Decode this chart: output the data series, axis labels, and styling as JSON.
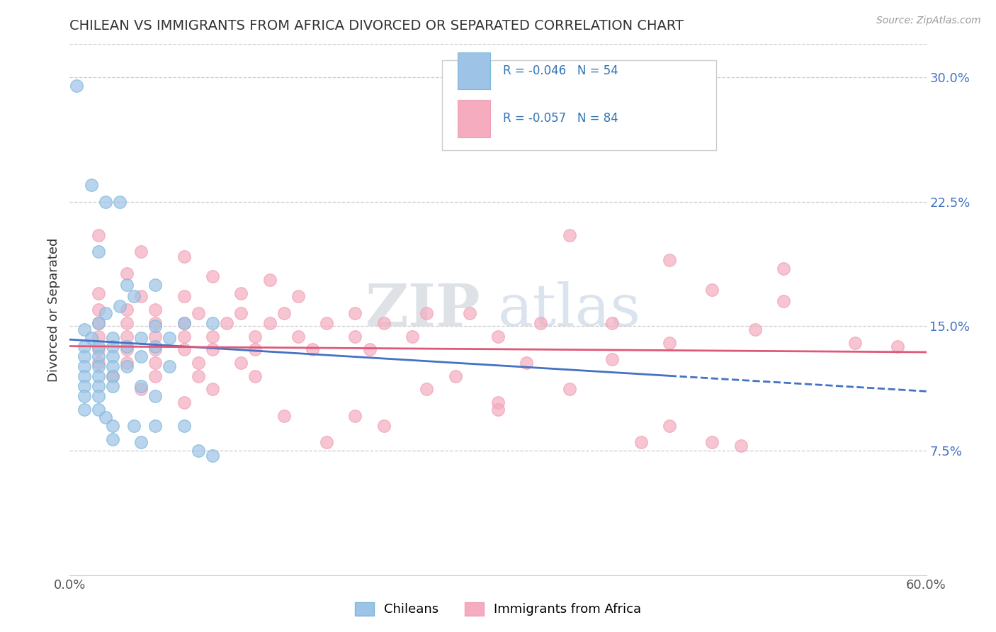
{
  "title": "CHILEAN VS IMMIGRANTS FROM AFRICA DIVORCED OR SEPARATED CORRELATION CHART",
  "source_text": "Source: ZipAtlas.com",
  "ylabel": "Divorced or Separated",
  "xlim": [
    0.0,
    0.6
  ],
  "ylim": [
    0.0,
    0.32
  ],
  "xticks": [
    0.0,
    0.1,
    0.2,
    0.3,
    0.4,
    0.5,
    0.6
  ],
  "xticklabels": [
    "0.0%",
    "",
    "",
    "",
    "",
    "",
    "60.0%"
  ],
  "yticks_right": [
    0.075,
    0.15,
    0.225,
    0.3
  ],
  "ytick_right_labels": [
    "7.5%",
    "15.0%",
    "22.5%",
    "30.0%"
  ],
  "legend_bottom": [
    "Chileans",
    "Immigrants from Africa"
  ],
  "chilean_color": "#7ab8d9",
  "africa_color": "#f0a0b8",
  "chilean_line_color": "#4472c4",
  "africa_line_color": "#e05878",
  "chilean_marker_color": "#9dc3e6",
  "africa_marker_color": "#f4acbe",
  "watermark_zip": "ZIP",
  "watermark_atlas": "atlas",
  "chilean_points": [
    [
      0.005,
      0.295
    ],
    [
      0.015,
      0.235
    ],
    [
      0.025,
      0.225
    ],
    [
      0.035,
      0.225
    ],
    [
      0.02,
      0.195
    ],
    [
      0.04,
      0.175
    ],
    [
      0.06,
      0.175
    ],
    [
      0.045,
      0.168
    ],
    [
      0.035,
      0.162
    ],
    [
      0.025,
      0.158
    ],
    [
      0.02,
      0.152
    ],
    [
      0.06,
      0.15
    ],
    [
      0.08,
      0.152
    ],
    [
      0.1,
      0.152
    ],
    [
      0.01,
      0.148
    ],
    [
      0.015,
      0.143
    ],
    [
      0.03,
      0.143
    ],
    [
      0.05,
      0.143
    ],
    [
      0.07,
      0.143
    ],
    [
      0.01,
      0.138
    ],
    [
      0.02,
      0.138
    ],
    [
      0.03,
      0.138
    ],
    [
      0.04,
      0.138
    ],
    [
      0.06,
      0.138
    ],
    [
      0.01,
      0.132
    ],
    [
      0.02,
      0.132
    ],
    [
      0.03,
      0.132
    ],
    [
      0.05,
      0.132
    ],
    [
      0.01,
      0.126
    ],
    [
      0.02,
      0.126
    ],
    [
      0.03,
      0.126
    ],
    [
      0.04,
      0.126
    ],
    [
      0.07,
      0.126
    ],
    [
      0.01,
      0.12
    ],
    [
      0.02,
      0.12
    ],
    [
      0.03,
      0.12
    ],
    [
      0.01,
      0.114
    ],
    [
      0.02,
      0.114
    ],
    [
      0.03,
      0.114
    ],
    [
      0.05,
      0.114
    ],
    [
      0.01,
      0.108
    ],
    [
      0.02,
      0.108
    ],
    [
      0.06,
      0.108
    ],
    [
      0.01,
      0.1
    ],
    [
      0.02,
      0.1
    ],
    [
      0.025,
      0.095
    ],
    [
      0.03,
      0.09
    ],
    [
      0.045,
      0.09
    ],
    [
      0.06,
      0.09
    ],
    [
      0.08,
      0.09
    ],
    [
      0.03,
      0.082
    ],
    [
      0.05,
      0.08
    ],
    [
      0.09,
      0.075
    ],
    [
      0.1,
      0.072
    ]
  ],
  "africa_points": [
    [
      0.02,
      0.205
    ],
    [
      0.05,
      0.195
    ],
    [
      0.08,
      0.192
    ],
    [
      0.04,
      0.182
    ],
    [
      0.1,
      0.18
    ],
    [
      0.14,
      0.178
    ],
    [
      0.02,
      0.17
    ],
    [
      0.05,
      0.168
    ],
    [
      0.08,
      0.168
    ],
    [
      0.12,
      0.17
    ],
    [
      0.16,
      0.168
    ],
    [
      0.02,
      0.16
    ],
    [
      0.04,
      0.16
    ],
    [
      0.06,
      0.16
    ],
    [
      0.09,
      0.158
    ],
    [
      0.12,
      0.158
    ],
    [
      0.15,
      0.158
    ],
    [
      0.2,
      0.158
    ],
    [
      0.25,
      0.158
    ],
    [
      0.02,
      0.152
    ],
    [
      0.04,
      0.152
    ],
    [
      0.06,
      0.152
    ],
    [
      0.08,
      0.152
    ],
    [
      0.11,
      0.152
    ],
    [
      0.14,
      0.152
    ],
    [
      0.18,
      0.152
    ],
    [
      0.22,
      0.152
    ],
    [
      0.02,
      0.144
    ],
    [
      0.04,
      0.144
    ],
    [
      0.06,
      0.144
    ],
    [
      0.08,
      0.144
    ],
    [
      0.1,
      0.144
    ],
    [
      0.13,
      0.144
    ],
    [
      0.16,
      0.144
    ],
    [
      0.2,
      0.144
    ],
    [
      0.24,
      0.144
    ],
    [
      0.3,
      0.144
    ],
    [
      0.02,
      0.136
    ],
    [
      0.04,
      0.136
    ],
    [
      0.06,
      0.136
    ],
    [
      0.08,
      0.136
    ],
    [
      0.1,
      0.136
    ],
    [
      0.13,
      0.136
    ],
    [
      0.17,
      0.136
    ],
    [
      0.21,
      0.136
    ],
    [
      0.02,
      0.128
    ],
    [
      0.04,
      0.128
    ],
    [
      0.06,
      0.128
    ],
    [
      0.09,
      0.128
    ],
    [
      0.12,
      0.128
    ],
    [
      0.03,
      0.12
    ],
    [
      0.06,
      0.12
    ],
    [
      0.09,
      0.12
    ],
    [
      0.13,
      0.12
    ],
    [
      0.05,
      0.112
    ],
    [
      0.1,
      0.112
    ],
    [
      0.08,
      0.104
    ],
    [
      0.3,
      0.104
    ],
    [
      0.15,
      0.096
    ],
    [
      0.2,
      0.096
    ],
    [
      0.35,
      0.205
    ],
    [
      0.42,
      0.19
    ],
    [
      0.45,
      0.172
    ],
    [
      0.5,
      0.165
    ],
    [
      0.38,
      0.152
    ],
    [
      0.48,
      0.148
    ],
    [
      0.42,
      0.14
    ],
    [
      0.33,
      0.152
    ],
    [
      0.28,
      0.158
    ],
    [
      0.55,
      0.14
    ],
    [
      0.58,
      0.138
    ],
    [
      0.5,
      0.185
    ],
    [
      0.38,
      0.13
    ],
    [
      0.25,
      0.112
    ],
    [
      0.35,
      0.112
    ],
    [
      0.3,
      0.1
    ],
    [
      0.22,
      0.09
    ],
    [
      0.27,
      0.12
    ],
    [
      0.32,
      0.128
    ],
    [
      0.42,
      0.09
    ],
    [
      0.18,
      0.08
    ],
    [
      0.4,
      0.08
    ],
    [
      0.45,
      0.08
    ],
    [
      0.47,
      0.078
    ]
  ]
}
